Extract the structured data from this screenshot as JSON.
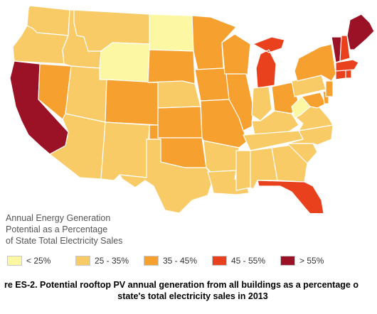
{
  "legend": {
    "title": "Annual Energy Generation\nPotential as a Percentage\nof State Total Electricity Sales",
    "items": [
      {
        "label": "< 25%",
        "color": "#fcf7a3"
      },
      {
        "label": "25 - 35%",
        "color": "#f8cb67"
      },
      {
        "label": "35 - 45%",
        "color": "#f5a02f"
      },
      {
        "label": "45 - 55%",
        "color": "#e9401e"
      },
      {
        "label": "> 55%",
        "color": "#9b1126"
      }
    ]
  },
  "caption": {
    "line1": "re ES-2. Potential rooftop PV annual generation from all buildings as a percentage o",
    "line2": "state's total electricity sales in 2013"
  },
  "map": {
    "border_color": "#ffffff",
    "states": [
      {
        "id": "WA",
        "class": 1
      },
      {
        "id": "OR",
        "class": 1
      },
      {
        "id": "CA",
        "class": 4
      },
      {
        "id": "NV",
        "class": 2
      },
      {
        "id": "ID",
        "class": 1
      },
      {
        "id": "MT",
        "class": 1
      },
      {
        "id": "WY",
        "class": 0
      },
      {
        "id": "UT",
        "class": 1
      },
      {
        "id": "AZ",
        "class": 1
      },
      {
        "id": "CO",
        "class": 2
      },
      {
        "id": "NM",
        "class": 1
      },
      {
        "id": "ND",
        "class": 0
      },
      {
        "id": "SD",
        "class": 2
      },
      {
        "id": "NE",
        "class": 1
      },
      {
        "id": "KS",
        "class": 2
      },
      {
        "id": "OK",
        "class": 2
      },
      {
        "id": "TX",
        "class": 1
      },
      {
        "id": "MN",
        "class": 2
      },
      {
        "id": "IA",
        "class": 2
      },
      {
        "id": "MO",
        "class": 2
      },
      {
        "id": "AR",
        "class": 1
      },
      {
        "id": "LA",
        "class": 1
      },
      {
        "id": "WI",
        "class": 2
      },
      {
        "id": "IL",
        "class": 2
      },
      {
        "id": "MI",
        "class": 3
      },
      {
        "id": "IN",
        "class": 1
      },
      {
        "id": "OH",
        "class": 2
      },
      {
        "id": "KY",
        "class": 1
      },
      {
        "id": "TN",
        "class": 1
      },
      {
        "id": "MS",
        "class": 1
      },
      {
        "id": "AL",
        "class": 1
      },
      {
        "id": "GA",
        "class": 1
      },
      {
        "id": "FL",
        "class": 3
      },
      {
        "id": "SC",
        "class": 1
      },
      {
        "id": "NC",
        "class": 1
      },
      {
        "id": "VA",
        "class": 1
      },
      {
        "id": "WV",
        "class": 0
      },
      {
        "id": "MD",
        "class": 2
      },
      {
        "id": "DE",
        "class": 2
      },
      {
        "id": "PA",
        "class": 1
      },
      {
        "id": "NJ",
        "class": 2
      },
      {
        "id": "NY",
        "class": 2
      },
      {
        "id": "CT",
        "class": 3
      },
      {
        "id": "RI",
        "class": 3
      },
      {
        "id": "MA",
        "class": 3
      },
      {
        "id": "VT",
        "class": 4
      },
      {
        "id": "NH",
        "class": 3
      },
      {
        "id": "ME",
        "class": 4
      }
    ]
  }
}
